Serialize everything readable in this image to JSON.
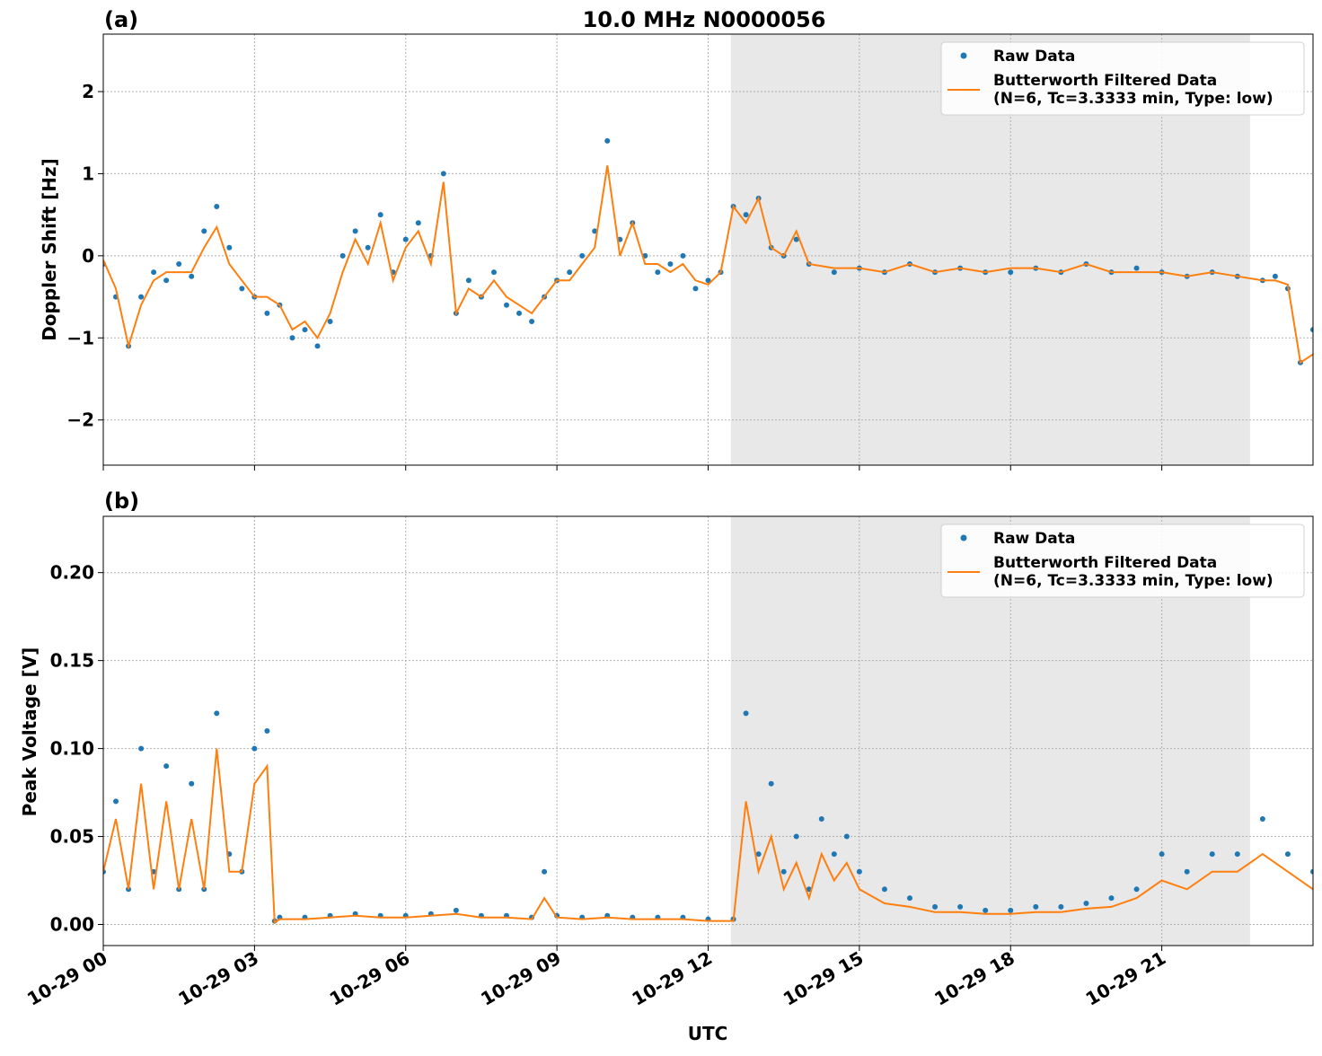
{
  "figure": {
    "title": "10.0 MHz N0000056",
    "xlabel": "UTC"
  },
  "chart_data": [
    {
      "type": "scatter",
      "panel_label": "(a)",
      "ylabel": "Doppler Shift [Hz]",
      "xlim_hours": [
        0,
        24
      ],
      "ylim": [
        -2.55,
        2.7
      ],
      "yticks": [
        -2,
        -1,
        0,
        1,
        2
      ],
      "ytick_labels": [
        "−2",
        "−1",
        "0",
        "1",
        "2"
      ],
      "xticks_hours": [
        0,
        3,
        6,
        9,
        12,
        15,
        18,
        21
      ],
      "shaded_span_hours": [
        12.45,
        22.75
      ],
      "grid": true,
      "legend_position": "top-right",
      "series": [
        {
          "name": "Raw Data",
          "kind": "points",
          "color": "#1f77b4",
          "x_hours": [
            0.0,
            0.25,
            0.5,
            0.75,
            1.0,
            1.25,
            1.5,
            1.75,
            2.0,
            2.25,
            2.5,
            2.75,
            3.0,
            3.25,
            3.5,
            3.75,
            4.0,
            4.25,
            4.5,
            4.75,
            5.0,
            5.25,
            5.5,
            5.75,
            6.0,
            6.25,
            6.5,
            6.75,
            7.0,
            7.25,
            7.5,
            7.75,
            8.0,
            8.25,
            8.5,
            8.75,
            9.0,
            9.25,
            9.5,
            9.75,
            10.0,
            10.25,
            10.5,
            10.75,
            11.0,
            11.25,
            11.5,
            11.75,
            12.0,
            12.25,
            12.5,
            12.75,
            13.0,
            13.25,
            13.5,
            13.75,
            14.0,
            14.5,
            15.0,
            15.5,
            16.0,
            16.5,
            17.0,
            17.5,
            18.0,
            18.5,
            19.0,
            19.5,
            20.0,
            20.5,
            21.0,
            21.5,
            22.0,
            22.5,
            23.0,
            23.25,
            23.5,
            23.75,
            24.0
          ],
          "y": [
            -0.1,
            -0.5,
            -1.1,
            -0.5,
            -0.2,
            -0.3,
            -0.1,
            -0.25,
            0.3,
            0.6,
            0.1,
            -0.4,
            -0.5,
            -0.7,
            -0.6,
            -1.0,
            -0.9,
            -1.1,
            -0.8,
            0.0,
            0.3,
            0.1,
            0.5,
            -0.2,
            0.2,
            0.4,
            0.0,
            1.0,
            -0.7,
            -0.3,
            -0.5,
            -0.2,
            -0.6,
            -0.7,
            -0.8,
            -0.5,
            -0.3,
            -0.2,
            0.0,
            0.3,
            1.4,
            0.2,
            0.4,
            0.0,
            -0.2,
            -0.1,
            0.0,
            -0.4,
            -0.3,
            -0.2,
            0.6,
            0.5,
            0.7,
            0.1,
            0.0,
            0.2,
            -0.1,
            -0.2,
            -0.15,
            -0.2,
            -0.1,
            -0.2,
            -0.15,
            -0.2,
            -0.2,
            -0.15,
            -0.2,
            -0.1,
            -0.2,
            -0.15,
            -0.2,
            -0.25,
            -0.2,
            -0.25,
            -0.3,
            -0.25,
            -0.4,
            -1.3,
            -0.9
          ]
        },
        {
          "name": "Butterworth Filtered Data\n(N=6, Tc=3.3333 min, Type: low)",
          "kind": "line",
          "color": "#ff7f0e",
          "x_hours": [
            0.0,
            0.25,
            0.5,
            0.75,
            1.0,
            1.25,
            1.5,
            1.75,
            2.0,
            2.25,
            2.5,
            2.75,
            3.0,
            3.25,
            3.5,
            3.75,
            4.0,
            4.25,
            4.5,
            4.75,
            5.0,
            5.25,
            5.5,
            5.75,
            6.0,
            6.25,
            6.5,
            6.75,
            7.0,
            7.25,
            7.5,
            7.75,
            8.0,
            8.25,
            8.5,
            8.75,
            9.0,
            9.25,
            9.5,
            9.75,
            10.0,
            10.25,
            10.5,
            10.75,
            11.0,
            11.25,
            11.5,
            11.75,
            12.0,
            12.25,
            12.5,
            12.75,
            13.0,
            13.25,
            13.5,
            13.75,
            14.0,
            14.5,
            15.0,
            15.5,
            16.0,
            16.5,
            17.0,
            17.5,
            18.0,
            18.5,
            19.0,
            19.5,
            20.0,
            20.5,
            21.0,
            21.5,
            22.0,
            22.5,
            23.0,
            23.25,
            23.5,
            23.75,
            24.0
          ],
          "y": [
            -0.05,
            -0.4,
            -1.1,
            -0.6,
            -0.3,
            -0.2,
            -0.2,
            -0.2,
            0.1,
            0.35,
            -0.1,
            -0.3,
            -0.5,
            -0.5,
            -0.6,
            -0.9,
            -0.8,
            -1.0,
            -0.7,
            -0.2,
            0.2,
            -0.1,
            0.4,
            -0.3,
            0.1,
            0.3,
            -0.1,
            0.9,
            -0.7,
            -0.4,
            -0.5,
            -0.3,
            -0.5,
            -0.6,
            -0.7,
            -0.5,
            -0.3,
            -0.3,
            -0.1,
            0.1,
            1.1,
            0.0,
            0.4,
            -0.1,
            -0.1,
            -0.2,
            -0.1,
            -0.3,
            -0.35,
            -0.2,
            0.6,
            0.4,
            0.7,
            0.1,
            0.0,
            0.3,
            -0.1,
            -0.15,
            -0.15,
            -0.2,
            -0.1,
            -0.2,
            -0.15,
            -0.2,
            -0.15,
            -0.15,
            -0.2,
            -0.1,
            -0.2,
            -0.2,
            -0.2,
            -0.25,
            -0.2,
            -0.25,
            -0.3,
            -0.3,
            -0.35,
            -1.3,
            -1.2
          ]
        }
      ]
    },
    {
      "type": "scatter",
      "panel_label": "(b)",
      "ylabel": "Peak Voltage [V]",
      "xlim_hours": [
        0,
        24
      ],
      "ylim": [
        -0.012,
        0.232
      ],
      "yticks": [
        0.0,
        0.05,
        0.1,
        0.15,
        0.2
      ],
      "ytick_labels": [
        "0.00",
        "0.05",
        "0.10",
        "0.15",
        "0.20"
      ],
      "xticks_hours": [
        0,
        3,
        6,
        9,
        12,
        15,
        18,
        21
      ],
      "xtick_labels": [
        "10-29 00",
        "10-29 03",
        "10-29 06",
        "10-29 09",
        "10-29 12",
        "10-29 15",
        "10-29 18",
        "10-29 21"
      ],
      "shaded_span_hours": [
        12.45,
        22.75
      ],
      "grid": true,
      "legend_position": "top-right",
      "series": [
        {
          "name": "Raw Data",
          "kind": "points",
          "color": "#1f77b4",
          "x_hours": [
            0.0,
            0.25,
            0.5,
            0.75,
            1.0,
            1.25,
            1.5,
            1.75,
            2.0,
            2.25,
            2.5,
            2.75,
            3.0,
            3.25,
            3.4,
            3.5,
            4.0,
            4.5,
            5.0,
            5.5,
            6.0,
            6.5,
            7.0,
            7.5,
            8.0,
            8.5,
            8.75,
            9.0,
            9.5,
            10.0,
            10.5,
            11.0,
            11.5,
            12.0,
            12.5,
            12.75,
            13.0,
            13.25,
            13.5,
            13.75,
            14.0,
            14.25,
            14.5,
            14.75,
            15.0,
            15.5,
            16.0,
            16.5,
            17.0,
            17.5,
            18.0,
            18.5,
            19.0,
            19.5,
            20.0,
            20.5,
            21.0,
            21.5,
            22.0,
            22.5,
            23.0,
            23.5,
            24.0
          ],
          "y": [
            0.03,
            0.07,
            0.02,
            0.1,
            0.03,
            0.09,
            0.02,
            0.08,
            0.02,
            0.12,
            0.04,
            0.03,
            0.1,
            0.11,
            0.002,
            0.004,
            0.004,
            0.005,
            0.006,
            0.005,
            0.005,
            0.006,
            0.008,
            0.005,
            0.005,
            0.004,
            0.03,
            0.005,
            0.004,
            0.005,
            0.004,
            0.004,
            0.004,
            0.003,
            0.003,
            0.12,
            0.04,
            0.08,
            0.03,
            0.05,
            0.02,
            0.06,
            0.04,
            0.05,
            0.03,
            0.02,
            0.015,
            0.01,
            0.01,
            0.008,
            0.008,
            0.01,
            0.01,
            0.012,
            0.015,
            0.02,
            0.04,
            0.03,
            0.04,
            0.04,
            0.06,
            0.04,
            0.03
          ]
        },
        {
          "name": "Butterworth Filtered Data\n(N=6, Tc=3.3333 min, Type: low)",
          "kind": "line",
          "color": "#ff7f0e",
          "x_hours": [
            0.0,
            0.25,
            0.5,
            0.75,
            1.0,
            1.25,
            1.5,
            1.75,
            2.0,
            2.25,
            2.5,
            2.75,
            3.0,
            3.25,
            3.4,
            3.5,
            4.0,
            4.5,
            5.0,
            5.5,
            6.0,
            6.5,
            7.0,
            7.5,
            8.0,
            8.5,
            8.75,
            9.0,
            9.5,
            10.0,
            10.5,
            11.0,
            11.5,
            12.0,
            12.5,
            12.75,
            13.0,
            13.25,
            13.5,
            13.75,
            14.0,
            14.25,
            14.5,
            14.75,
            15.0,
            15.5,
            16.0,
            16.5,
            17.0,
            17.5,
            18.0,
            18.5,
            19.0,
            19.5,
            20.0,
            20.5,
            21.0,
            21.5,
            22.0,
            22.5,
            23.0,
            23.5,
            24.0
          ],
          "y": [
            0.03,
            0.06,
            0.02,
            0.08,
            0.02,
            0.07,
            0.02,
            0.06,
            0.02,
            0.1,
            0.03,
            0.03,
            0.08,
            0.09,
            0.001,
            0.003,
            0.003,
            0.004,
            0.005,
            0.004,
            0.004,
            0.005,
            0.006,
            0.004,
            0.004,
            0.003,
            0.015,
            0.004,
            0.003,
            0.004,
            0.003,
            0.003,
            0.003,
            0.002,
            0.002,
            0.07,
            0.03,
            0.05,
            0.02,
            0.035,
            0.015,
            0.04,
            0.025,
            0.035,
            0.02,
            0.012,
            0.01,
            0.007,
            0.007,
            0.006,
            0.006,
            0.007,
            0.007,
            0.009,
            0.01,
            0.015,
            0.025,
            0.02,
            0.03,
            0.03,
            0.04,
            0.03,
            0.02
          ]
        }
      ]
    }
  ]
}
